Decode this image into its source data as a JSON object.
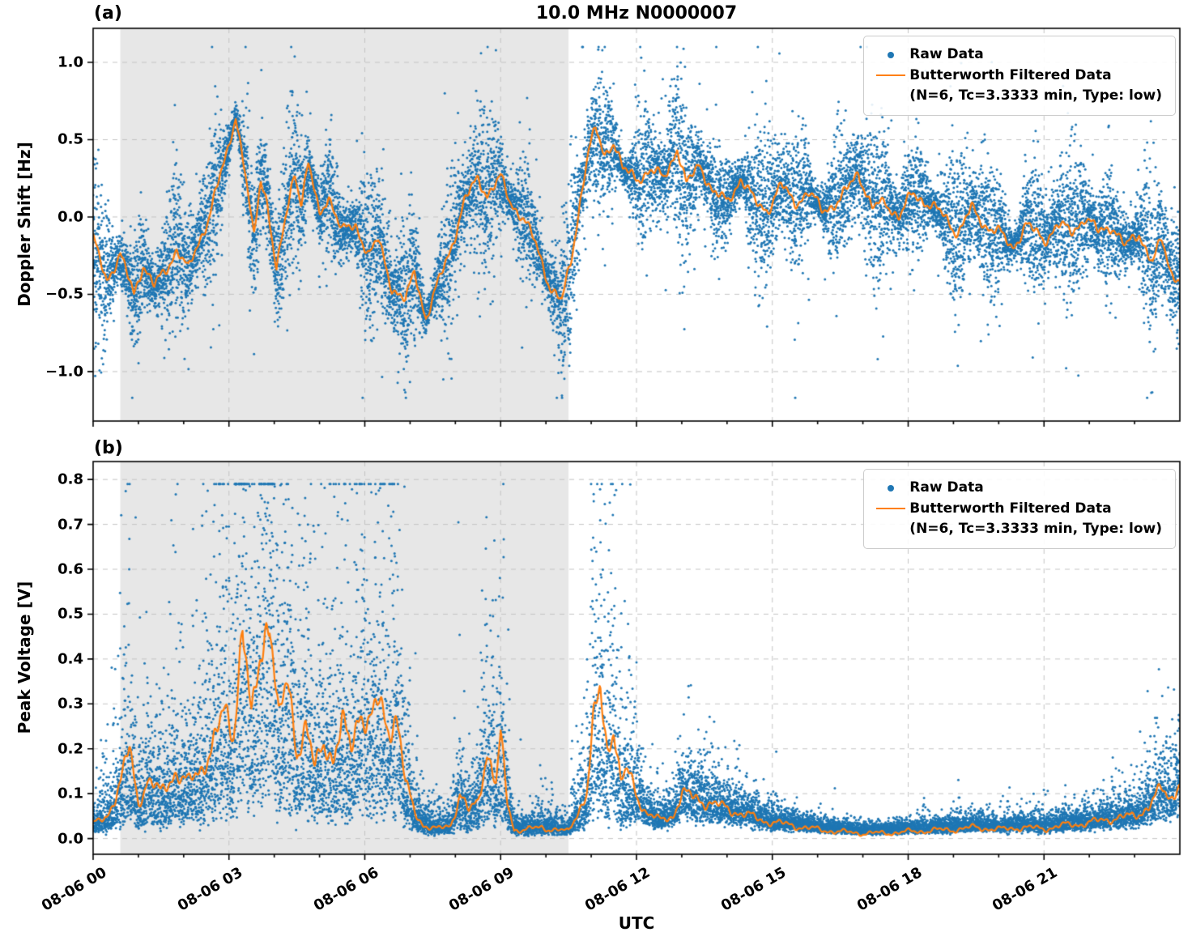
{
  "figure": {
    "title": "10.0 MHz N0000007",
    "xlabel": "UTC",
    "panels": [
      {
        "label": "(a)",
        "ylabel": "Doppler Shift [Hz]"
      },
      {
        "label": "(b)",
        "ylabel": "Peak Voltage [V]"
      }
    ]
  },
  "legend": {
    "raw_label": "Raw Data",
    "filtered_label": "Butterworth Filtered Data",
    "filtered_sublabel": "(N=6, Tc=3.3333 min, Type: low)"
  },
  "colors": {
    "raw": "#1f77b4",
    "filtered": "#ff7f0e",
    "shade": "#e7e7e7",
    "grid": "#c4c4c4",
    "spine": "#000000"
  },
  "chart_data": [
    {
      "id": "a",
      "type": "scatter",
      "title": "10.0 MHz N0000007",
      "xlabel": "",
      "ylabel": "Doppler Shift [Hz]",
      "xlim": [
        0,
        24
      ],
      "ylim": [
        -1.32,
        1.22
      ],
      "grid": true,
      "legend_position": "upper right",
      "shaded_region_hours": [
        0.6,
        10.5
      ],
      "xticks": {
        "positions_hours": [
          0,
          3,
          6,
          9,
          12,
          15,
          18,
          21
        ],
        "labels": [
          "08-06 00",
          "08-06 03",
          "08-06 06",
          "08-06 09",
          "08-06 12",
          "08-06 15",
          "08-06 18",
          "08-06 21"
        ]
      },
      "show_xtick_labels": false,
      "ytick_values": [
        1.0,
        0.5,
        0.0,
        -0.5,
        -1.0
      ],
      "ytick_labels": [
        "1.0",
        "0.5",
        "0.0",
        "−0.5",
        "−1.0"
      ],
      "series": [
        {
          "name": "Raw Data",
          "style": "scatter",
          "color": "#1f77b4",
          "marker_size_px": 3,
          "noise_model": {
            "type": "additive",
            "sd": 0.16,
            "tail_prob": 0.06,
            "tail_factor": 2.3,
            "clip": [
              -1.17,
              1.1
            ]
          }
        },
        {
          "name": "Butterworth Filtered Data (N=6, Tc=3.3333 min, Type: low)",
          "style": "line",
          "color": "#ff7f0e",
          "wiggle_abs": 0.05,
          "wiggle_rel": 0,
          "x": [
            0,
            0.3,
            0.6,
            0.9,
            1.1,
            1.35,
            1.6,
            1.85,
            2.1,
            2.35,
            2.55,
            2.75,
            2.95,
            3.15,
            3.35,
            3.55,
            3.7,
            3.85,
            4.05,
            4.2,
            4.45,
            4.6,
            4.75,
            5.0,
            5.2,
            5.5,
            5.8,
            6.1,
            6.3,
            6.6,
            6.9,
            7.1,
            7.35,
            7.6,
            7.9,
            8.2,
            8.5,
            8.7,
            9.0,
            9.2,
            9.5,
            9.8,
            10.1,
            10.35,
            10.55,
            10.75,
            10.95,
            11.1,
            11.3,
            11.5,
            11.7,
            12.0,
            12.3,
            12.6,
            12.9,
            13.1,
            13.4,
            13.7,
            14.0,
            14.3,
            14.6,
            14.9,
            15.2,
            15.5,
            15.8,
            16.1,
            16.5,
            16.9,
            17.2,
            17.5,
            17.8,
            18.1,
            18.4,
            18.8,
            19.1,
            19.4,
            19.7,
            20.0,
            20.3,
            20.6,
            21.0,
            21.3,
            21.6,
            21.9,
            22.2,
            22.5,
            22.8,
            23.1,
            23.4,
            23.6,
            23.8,
            24.0
          ],
          "y": [
            -0.15,
            -0.4,
            -0.25,
            -0.5,
            -0.3,
            -0.45,
            -0.35,
            -0.2,
            -0.35,
            -0.15,
            0.0,
            0.2,
            0.4,
            0.67,
            0.3,
            -0.15,
            0.25,
            0.1,
            -0.35,
            -0.1,
            0.3,
            0.1,
            0.35,
            0.0,
            0.15,
            -0.1,
            -0.05,
            -0.25,
            -0.15,
            -0.45,
            -0.55,
            -0.35,
            -0.65,
            -0.45,
            -0.2,
            0.1,
            0.25,
            0.15,
            0.25,
            0.1,
            0.0,
            -0.2,
            -0.45,
            -0.55,
            -0.3,
            0.1,
            0.45,
            0.55,
            0.4,
            0.5,
            0.3,
            0.25,
            0.3,
            0.25,
            0.45,
            0.2,
            0.35,
            0.15,
            0.1,
            0.25,
            0.1,
            0.05,
            0.2,
            0.1,
            0.15,
            0.05,
            0.1,
            0.3,
            0.05,
            0.1,
            0.0,
            0.15,
            0.1,
            0.0,
            -0.1,
            0.05,
            -0.05,
            -0.1,
            -0.2,
            -0.05,
            -0.15,
            -0.05,
            -0.1,
            0.0,
            -0.1,
            -0.05,
            -0.2,
            -0.1,
            -0.3,
            -0.15,
            -0.35,
            -0.4
          ]
        }
      ]
    },
    {
      "id": "b",
      "type": "scatter",
      "title": "",
      "xlabel": "UTC",
      "ylabel": "Peak Voltage [V]",
      "xlim": [
        0,
        24
      ],
      "ylim": [
        -0.035,
        0.84
      ],
      "grid": true,
      "legend_position": "upper right",
      "shaded_region_hours": [
        0.6,
        10.5
      ],
      "xticks": {
        "positions_hours": [
          0,
          3,
          6,
          9,
          12,
          15,
          18,
          21
        ],
        "labels": [
          "08-06 00",
          "08-06 03",
          "08-06 06",
          "08-06 09",
          "08-06 12",
          "08-06 15",
          "08-06 18",
          "08-06 21"
        ]
      },
      "show_xtick_labels": true,
      "ytick_values": [
        0.0,
        0.1,
        0.2,
        0.3,
        0.4,
        0.5,
        0.6,
        0.7,
        0.8
      ],
      "ytick_labels": [
        "0.0",
        "0.1",
        "0.2",
        "0.3",
        "0.4",
        "0.5",
        "0.6",
        "0.7",
        "0.8"
      ],
      "series": [
        {
          "name": "Raw Data",
          "style": "scatter",
          "color": "#1f77b4",
          "marker_size_px": 3,
          "noise_model": {
            "type": "multiplicative",
            "sigma_active": 0.7,
            "sigma_quiet": 0.45,
            "active_until_hour": 12,
            "base": 0.008,
            "spike_prob": 0.005,
            "clip": [
              0.0,
              0.79
            ]
          }
        },
        {
          "name": "Butterworth Filtered Data (N=6, Tc=3.3333 min, Type: low)",
          "style": "line",
          "color": "#ff7f0e",
          "wiggle_abs": 0.005,
          "wiggle_rel": 0.15,
          "floor": 0.004,
          "x": [
            0,
            0.3,
            0.6,
            0.8,
            1.0,
            1.2,
            1.5,
            1.8,
            2.1,
            2.4,
            2.7,
            2.9,
            3.1,
            3.3,
            3.5,
            3.7,
            3.9,
            4.1,
            4.3,
            4.5,
            4.7,
            4.9,
            5.1,
            5.3,
            5.5,
            5.7,
            5.9,
            6.1,
            6.3,
            6.5,
            6.7,
            6.9,
            7.1,
            7.3,
            7.6,
            7.9,
            8.1,
            8.3,
            8.5,
            8.7,
            8.9,
            9.0,
            9.15,
            9.3,
            9.6,
            9.9,
            10.2,
            10.5,
            10.7,
            10.9,
            11.05,
            11.2,
            11.35,
            11.5,
            11.65,
            11.8,
            12.0,
            12.2,
            12.5,
            12.8,
            13.0,
            13.3,
            13.6,
            13.9,
            14.2,
            14.5,
            14.8,
            15.1,
            15.4,
            15.7,
            16.0,
            16.5,
            17.0,
            17.5,
            18.0,
            18.5,
            19.0,
            19.5,
            20.0,
            20.5,
            21.0,
            21.5,
            22.0,
            22.5,
            23.0,
            23.3,
            23.6,
            23.8,
            24.0
          ],
          "y": [
            0.03,
            0.05,
            0.12,
            0.2,
            0.08,
            0.13,
            0.1,
            0.15,
            0.12,
            0.16,
            0.22,
            0.28,
            0.24,
            0.48,
            0.25,
            0.42,
            0.52,
            0.25,
            0.35,
            0.2,
            0.25,
            0.15,
            0.22,
            0.18,
            0.25,
            0.2,
            0.3,
            0.25,
            0.3,
            0.25,
            0.28,
            0.12,
            0.06,
            0.03,
            0.02,
            0.03,
            0.1,
            0.06,
            0.08,
            0.2,
            0.12,
            0.22,
            0.08,
            0.02,
            0.02,
            0.025,
            0.02,
            0.015,
            0.06,
            0.1,
            0.25,
            0.33,
            0.2,
            0.26,
            0.12,
            0.15,
            0.1,
            0.06,
            0.04,
            0.05,
            0.1,
            0.09,
            0.08,
            0.07,
            0.06,
            0.05,
            0.04,
            0.035,
            0.03,
            0.025,
            0.02,
            0.015,
            0.012,
            0.012,
            0.015,
            0.018,
            0.02,
            0.025,
            0.02,
            0.025,
            0.022,
            0.03,
            0.035,
            0.045,
            0.05,
            0.07,
            0.11,
            0.09,
            0.13
          ]
        }
      ]
    }
  ]
}
